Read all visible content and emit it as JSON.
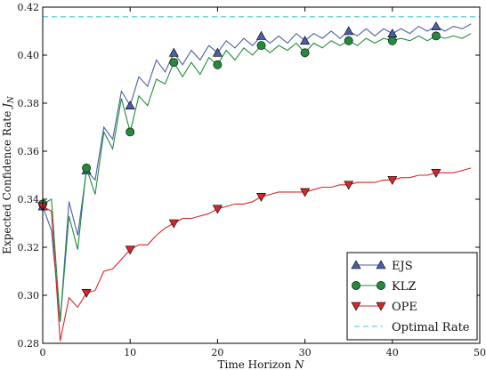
{
  "chart_data": {
    "type": "line",
    "xlabel": "Time Horizon N",
    "ylabel": "Expected Confidence Rate J_N",
    "xlim": [
      0,
      50
    ],
    "ylim": [
      0.28,
      0.42
    ],
    "xticks": [
      "0",
      "10",
      "20",
      "30",
      "40",
      "50"
    ],
    "yticks": [
      "0.28",
      "0.30",
      "0.32",
      "0.34",
      "0.36",
      "0.38",
      "0.40",
      "0.42"
    ],
    "grid": false,
    "legend_position": "bottom-right",
    "series": [
      {
        "name": "EJS",
        "color": "#4a5fa8",
        "marker": "triangle-up",
        "marker_every": 5,
        "x": [
          0,
          1,
          2,
          3,
          4,
          5,
          6,
          7,
          8,
          9,
          10,
          11,
          12,
          13,
          14,
          15,
          16,
          17,
          18,
          19,
          20,
          21,
          22,
          23,
          24,
          25,
          26,
          27,
          28,
          29,
          30,
          31,
          32,
          33,
          34,
          35,
          36,
          37,
          38,
          39,
          40,
          41,
          42,
          43,
          44,
          45,
          46,
          47,
          48,
          49
        ],
        "y": [
          0.337,
          0.327,
          0.289,
          0.339,
          0.325,
          0.352,
          0.348,
          0.37,
          0.365,
          0.385,
          0.379,
          0.391,
          0.387,
          0.398,
          0.393,
          0.401,
          0.396,
          0.402,
          0.398,
          0.404,
          0.401,
          0.406,
          0.403,
          0.407,
          0.404,
          0.408,
          0.405,
          0.408,
          0.405,
          0.409,
          0.406,
          0.409,
          0.407,
          0.41,
          0.407,
          0.41,
          0.408,
          0.411,
          0.408,
          0.411,
          0.409,
          0.411,
          0.409,
          0.412,
          0.41,
          0.412,
          0.41,
          0.412,
          0.411,
          0.413
        ]
      },
      {
        "name": "KLZ",
        "color": "#228b3c",
        "marker": "circle",
        "marker_every": 5,
        "x": [
          0,
          1,
          2,
          3,
          4,
          5,
          6,
          7,
          8,
          9,
          10,
          11,
          12,
          13,
          14,
          15,
          16,
          17,
          18,
          19,
          20,
          21,
          22,
          23,
          24,
          25,
          26,
          27,
          28,
          29,
          30,
          31,
          32,
          33,
          34,
          35,
          36,
          37,
          38,
          39,
          40,
          41,
          42,
          43,
          44,
          45,
          46,
          47,
          48,
          49
        ],
        "y": [
          0.338,
          0.34,
          0.289,
          0.333,
          0.319,
          0.353,
          0.342,
          0.368,
          0.361,
          0.382,
          0.368,
          0.383,
          0.379,
          0.39,
          0.388,
          0.397,
          0.391,
          0.397,
          0.392,
          0.399,
          0.396,
          0.402,
          0.398,
          0.403,
          0.4,
          0.404,
          0.401,
          0.404,
          0.402,
          0.405,
          0.401,
          0.405,
          0.403,
          0.406,
          0.404,
          0.406,
          0.404,
          0.407,
          0.405,
          0.407,
          0.406,
          0.407,
          0.406,
          0.408,
          0.406,
          0.408,
          0.407,
          0.408,
          0.407,
          0.409
        ]
      },
      {
        "name": "OPE",
        "color": "#d62728",
        "marker": "triangle-down",
        "marker_every": 5,
        "x": [
          0,
          1,
          2,
          3,
          4,
          5,
          6,
          7,
          8,
          9,
          10,
          11,
          12,
          13,
          14,
          15,
          16,
          17,
          18,
          19,
          20,
          21,
          22,
          23,
          24,
          25,
          26,
          27,
          28,
          29,
          30,
          31,
          32,
          33,
          34,
          35,
          36,
          37,
          38,
          39,
          40,
          41,
          42,
          43,
          44,
          45,
          46,
          47,
          48,
          49
        ],
        "y": [
          0.337,
          0.335,
          0.281,
          0.299,
          0.295,
          0.301,
          0.302,
          0.31,
          0.311,
          0.315,
          0.319,
          0.321,
          0.321,
          0.325,
          0.328,
          0.33,
          0.332,
          0.332,
          0.333,
          0.334,
          0.336,
          0.337,
          0.338,
          0.338,
          0.339,
          0.341,
          0.342,
          0.343,
          0.343,
          0.343,
          0.343,
          0.344,
          0.345,
          0.345,
          0.346,
          0.346,
          0.347,
          0.347,
          0.347,
          0.348,
          0.348,
          0.349,
          0.349,
          0.35,
          0.35,
          0.351,
          0.351,
          0.351,
          0.352,
          0.353
        ]
      },
      {
        "name": "Optimal Rate",
        "color": "#40c8c8",
        "style": "dashed",
        "x": [
          0,
          50
        ],
        "y": [
          0.416,
          0.416
        ]
      }
    ]
  }
}
